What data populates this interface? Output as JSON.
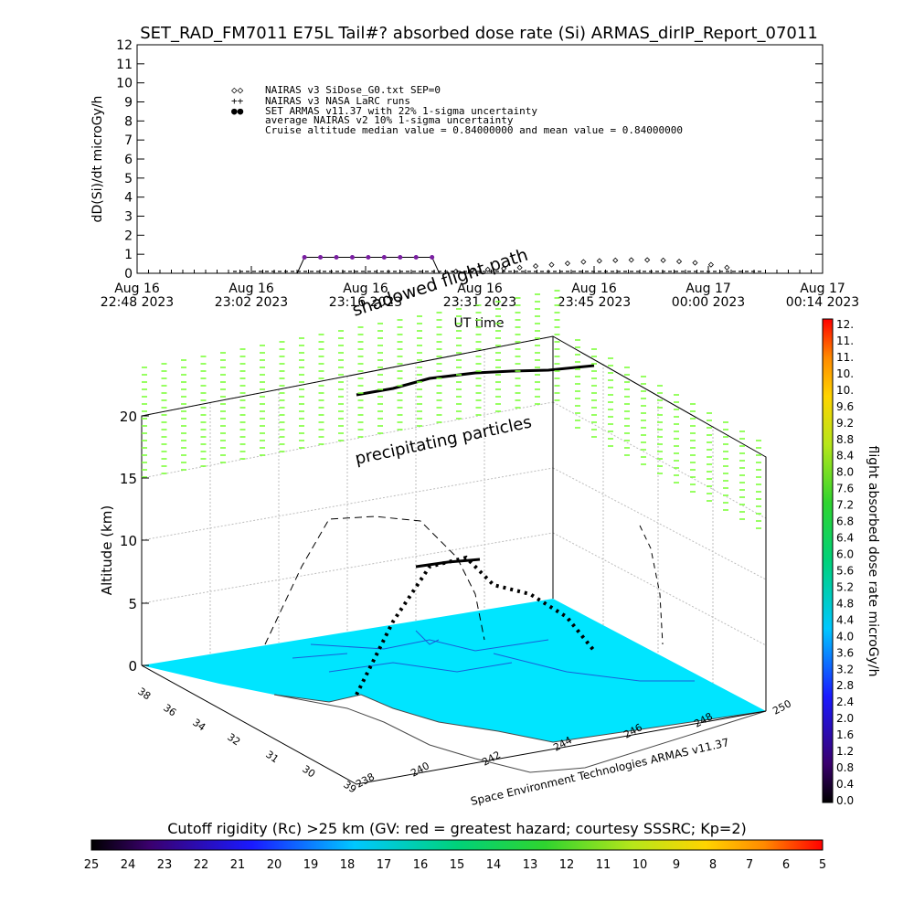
{
  "colors": {
    "background": "#ffffff",
    "ocean": "#00e5ff",
    "land": "#ffffff",
    "flight_path": "#000000",
    "precip": "#7dff3a",
    "line_plot": "#7a1fa2",
    "series_marker_blue": "#0000cc"
  },
  "title": "SET_RAD_FM7011  E75L Tail#? absorbed dose rate (Si) ARMAS_dirIP_Report_07011",
  "chart_data": [
    {
      "type": "line",
      "ylabel": "dD(Si)/dt microGy/h",
      "xlabel": "UT time",
      "ylim": [
        0,
        12
      ],
      "yticks": [
        "0",
        "1",
        "2",
        "3",
        "4",
        "5",
        "6",
        "7",
        "8",
        "9",
        "10",
        "11",
        "12"
      ],
      "xtick_labels": [
        [
          "Aug 16",
          "22:48 2023"
        ],
        [
          "Aug 16",
          "23:02 2023"
        ],
        [
          "Aug 16",
          "23:16 2023"
        ],
        [
          "Aug 16",
          "23:31 2023"
        ],
        [
          "Aug 16",
          "23:45 2023"
        ],
        [
          "Aug 17",
          "00:00 2023"
        ],
        [
          "Aug 17",
          "00:14 2023"
        ]
      ],
      "legend": [
        {
          "symbol": "◇◇",
          "label": "NAIRAS v3 SiDose_G0.txt SEP=0"
        },
        {
          "symbol": "++",
          "label": "NAIRAS v3 NASA LaRC runs"
        },
        {
          "symbol": "●●",
          "label": "SET ARMAS v11.37 with 22% 1-sigma uncertainty"
        },
        {
          "symbol": "",
          "label": "average NAIRAS v2 10% 1-sigma uncertainty"
        },
        {
          "symbol": "",
          "label": "Cruise altitude median value = 0.84000000 and mean value = 0.84000000"
        }
      ],
      "series": [
        {
          "style": "armas-points",
          "x": [
            "23:09",
            "23:11",
            "23:13",
            "23:15",
            "23:17",
            "23:19",
            "23:21",
            "23:23",
            "23:25"
          ],
          "y": [
            0.84,
            0.84,
            0.84,
            0.84,
            0.84,
            0.84,
            0.84,
            0.84,
            0.84
          ]
        },
        {
          "style": "nairas-diamonds",
          "x": [
            "23:28",
            "23:30",
            "23:32",
            "23:34",
            "23:36",
            "23:38",
            "23:40",
            "23:42",
            "23:44",
            "23:46",
            "23:48",
            "23:50",
            "23:52",
            "23:54",
            "23:56",
            "23:58",
            "00:00",
            "00:02"
          ],
          "y": [
            0.1,
            0.15,
            0.2,
            0.25,
            0.3,
            0.38,
            0.45,
            0.52,
            0.6,
            0.65,
            0.68,
            0.7,
            0.7,
            0.68,
            0.62,
            0.55,
            0.45,
            0.3
          ]
        }
      ]
    },
    {
      "type": "3d-map",
      "zlabel": "Altitude (km)",
      "zticks": [
        "0",
        "5",
        "10",
        "15",
        "20"
      ],
      "lat_ticks": [
        "38",
        "36",
        "34",
        "32",
        "31",
        "30",
        "39"
      ],
      "lon_ticks": [
        "238",
        "240",
        "242",
        "244",
        "246",
        "248",
        "250"
      ],
      "annotations": {
        "shadowed_flight_path": "shadowed flight path",
        "precipitating_particles": "precipitating particles",
        "credit": "Space Environment Technologies ARMAS v11.37"
      },
      "colorbar_right": {
        "label": "flight absorbed dose rate microGy/h",
        "ticks": [
          "12.",
          "11.",
          "11.",
          "10.",
          "10.",
          "9.6",
          "9.2",
          "8.8",
          "8.4",
          "8.0",
          "7.6",
          "7.2",
          "6.8",
          "6.4",
          "6.0",
          "5.6",
          "5.2",
          "4.8",
          "4.4",
          "4.0",
          "3.6",
          "3.2",
          "2.8",
          "2.4",
          "2.0",
          "1.6",
          "1.2",
          "0.8",
          "0.4",
          "0.0"
        ]
      },
      "colorbar_bottom": {
        "label": "Cutoff rigidity (Rc) >25 km (GV: red = greatest hazard; courtesy SSSRC; Kp=2)",
        "ticks": [
          "25",
          "24",
          "23",
          "22",
          "21",
          "20",
          "19",
          "18",
          "17",
          "16",
          "15",
          "14",
          "13",
          "12",
          "11",
          "10",
          "9",
          "8",
          "7",
          "6",
          "5"
        ]
      }
    }
  ]
}
